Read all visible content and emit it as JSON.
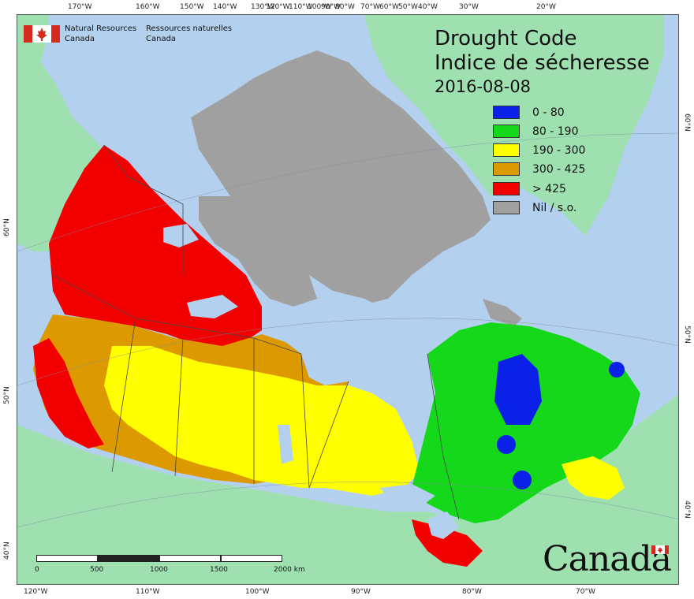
{
  "title": {
    "line1": "Drought Code",
    "line2": "Indice de sécheresse",
    "date": "2016-08-08"
  },
  "agency": {
    "english": [
      "Natural Resources",
      "Canada"
    ],
    "french": [
      "Ressources naturelles",
      "Canada"
    ]
  },
  "legend": [
    {
      "label": "0 - 80",
      "color": "#0b21e8"
    },
    {
      "label": "80 - 190",
      "color": "#16d81a"
    },
    {
      "label": "190 - 300",
      "color": "#ffff00"
    },
    {
      "label": "300 - 425",
      "color": "#dd9a00"
    },
    {
      "label": "> 425",
      "color": "#f20000"
    },
    {
      "label": "Nil / s.o.",
      "color": "#a0a0a0"
    }
  ],
  "graticule": {
    "top": [
      "170°W",
      "160°W",
      "150°W",
      "140°W",
      "130°W",
      "120°W",
      "110°W",
      "100°W",
      "90°W",
      "80°W",
      "70°W",
      "60°W",
      "50°W",
      "40°W",
      "30°W",
      "20°W"
    ],
    "bottom": [
      "120°W",
      "110°W",
      "100°W",
      "90°W",
      "80°W",
      "70°W"
    ],
    "left": [
      "60°N",
      "50°N",
      "40°N"
    ],
    "right": [
      "60°N",
      "50°N",
      "40°N"
    ]
  },
  "scale_bar": {
    "ticks": [
      "0",
      "500",
      "1000",
      "1500",
      "2000 km"
    ]
  },
  "wordmark": "Canada",
  "colors": {
    "ocean": "#b3d1ef",
    "land_outside": "#9fe0b0",
    "nil": "#a0a0a0"
  }
}
